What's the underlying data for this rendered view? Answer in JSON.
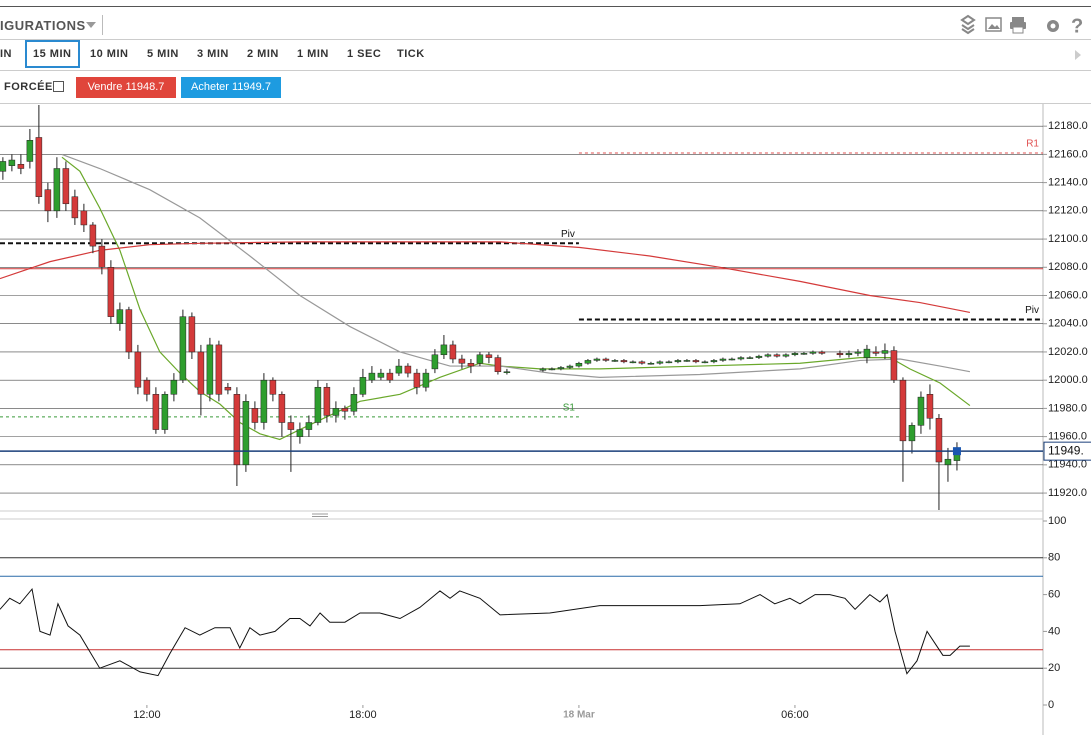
{
  "toolbar": {
    "title": "IGURATIONS"
  },
  "timeframes": [
    "IN",
    "15 MIN",
    "10 MIN",
    "5 MIN",
    "3 MIN",
    "2 MIN",
    "1 MIN",
    "1 SEC",
    "TICK"
  ],
  "order_bar": {
    "label": "FORCÉE",
    "sell": "Vendre 11948.7",
    "buy": "Acheter 11949.7"
  },
  "chart_data": [
    {
      "type": "candlestick",
      "xlim": [
        7.92,
        36.89
      ],
      "ylim": [
        11908,
        12195
      ],
      "grid": true,
      "yticks": [
        {
          "value": 12180,
          "label": "12180.0"
        },
        {
          "value": 12160,
          "label": "12160.0"
        },
        {
          "value": 12140,
          "label": "12140.0"
        },
        {
          "value": 12120,
          "label": "12120.0"
        },
        {
          "value": 12100,
          "label": "12100.0"
        },
        {
          "value": 12080,
          "label": "12080.0"
        },
        {
          "value": 12060,
          "label": "12060.0"
        },
        {
          "value": 12040,
          "label": "12040.0"
        },
        {
          "value": 12020,
          "label": "12020.0"
        },
        {
          "value": 12000,
          "label": "12000.0"
        },
        {
          "value": 11980,
          "label": "11980.0"
        },
        {
          "value": 11960,
          "label": "11960.0"
        },
        {
          "value": 11940,
          "label": "11940.0"
        },
        {
          "value": 11920,
          "label": "11920.0"
        }
      ],
      "up_color": "#2e9e2e",
      "down_color": "#d43a3a",
      "x": [
        8,
        8.25,
        8.5,
        8.75,
        9,
        9.25,
        9.5,
        9.75,
        10,
        10.25,
        10.5,
        10.75,
        11,
        11.25,
        11.5,
        11.75,
        12,
        12.25,
        12.5,
        12.75,
        13,
        13.25,
        13.5,
        13.75,
        14,
        14.25,
        14.5,
        14.75,
        15,
        15.25,
        15.5,
        15.75,
        16,
        16.25,
        16.5,
        16.75,
        17,
        17.25,
        17.5,
        17.75,
        18,
        18.25,
        18.5,
        18.75,
        19,
        19.25,
        19.5,
        19.75,
        20,
        20.25,
        20.5,
        20.75,
        21,
        21.25,
        21.5,
        21.75,
        22,
        23,
        23.25,
        23.5,
        23.75,
        24,
        24.25,
        24.5,
        24.75,
        25,
        25.25,
        25.5,
        25.75,
        26,
        26.25,
        26.5,
        26.75,
        27,
        27.25,
        27.5,
        27.75,
        28,
        28.25,
        28.5,
        28.75,
        29,
        29.25,
        29.5,
        29.75,
        30,
        30.25,
        30.5,
        30.75,
        31.25,
        31.5,
        31.75,
        32,
        32.25,
        32.5,
        32.75,
        33,
        33.25,
        33.5,
        33.75,
        34,
        34.25,
        34.5
      ],
      "open": [
        12148,
        12152,
        12153,
        12155,
        12172,
        12135,
        12120,
        12150,
        12130,
        12120,
        12110,
        12095,
        12080,
        12040,
        12050,
        12020,
        12000,
        11990,
        11965,
        11990,
        12000,
        12045,
        12020,
        11990,
        12025,
        11995,
        11990,
        11940,
        11980,
        11970,
        12000,
        11990,
        11970,
        11960,
        11965,
        11970,
        11995,
        11975,
        11980,
        11978,
        11990,
        12000,
        12002,
        12005,
        12005,
        12010,
        12005,
        11995,
        12008,
        12018,
        12025,
        12015,
        12012,
        12012,
        12018,
        12016,
        12006,
        12007,
        12008,
        12008,
        12009,
        12010,
        12012,
        12014,
        12015,
        12014,
        12014,
        12013,
        12013,
        12012,
        12012,
        12013,
        12013,
        12014,
        12014,
        12013,
        12013,
        12014,
        12015,
        12015,
        12016,
        12016,
        12017,
        12018,
        12017,
        12018,
        12019,
        12019,
        12020,
        12019,
        12018,
        12019,
        12016,
        12020,
        12019,
        12021,
        12000,
        11957,
        11968,
        11990,
        11973,
        11940,
        11943
      ],
      "high": [
        12158,
        12160,
        12160,
        12178,
        12195,
        12140,
        12158,
        12155,
        12135,
        12125,
        12112,
        12100,
        12085,
        12055,
        12052,
        12025,
        12002,
        11995,
        11992,
        12005,
        12050,
        12048,
        12025,
        12030,
        12028,
        11998,
        11995,
        11990,
        11985,
        12005,
        12002,
        11992,
        11975,
        11970,
        11975,
        12000,
        11998,
        11985,
        11982,
        11995,
        12008,
        12010,
        12008,
        12008,
        12015,
        12012,
        12008,
        12008,
        12022,
        12032,
        12028,
        12018,
        12015,
        12020,
        12020,
        12018,
        12008,
        12009,
        12009,
        12010,
        12011,
        12013,
        12015,
        12016,
        12016,
        12015,
        12015,
        12014,
        12014,
        12013,
        12014,
        12014,
        12015,
        12015,
        12015,
        12014,
        12015,
        12016,
        12016,
        12017,
        12017,
        12018,
        12019,
        12019,
        12019,
        12020,
        12020,
        12021,
        12021,
        12021,
        12021,
        12022,
        12025,
        12024,
        12026,
        12024,
        12002,
        11970,
        11992,
        11997,
        11976,
        11952,
        11956
      ],
      "low": [
        12142,
        12148,
        12146,
        12150,
        12125,
        12112,
        12115,
        12120,
        12110,
        12105,
        12090,
        12075,
        12040,
        12035,
        12015,
        11990,
        11985,
        11962,
        11962,
        11985,
        11998,
        12015,
        11975,
        11985,
        11985,
        11990,
        11925,
        11935,
        11965,
        11965,
        11985,
        11960,
        11935,
        11955,
        11960,
        11968,
        11970,
        11970,
        11972,
        11975,
        11988,
        11998,
        12000,
        11998,
        12003,
        12002,
        11990,
        11992,
        12005,
        12015,
        12012,
        12008,
        12005,
        12010,
        12012,
        12004,
        12004,
        12006,
        12007,
        12007,
        12008,
        12009,
        12011,
        12013,
        12013,
        12013,
        12012,
        12012,
        12011,
        12011,
        12011,
        12012,
        12012,
        12013,
        12012,
        12012,
        12012,
        12013,
        12014,
        12014,
        12015,
        12015,
        12016,
        12016,
        12016,
        12017,
        12018,
        12018,
        12018,
        12016,
        12016,
        12017,
        12012,
        12017,
        12015,
        11998,
        11928,
        11948,
        11962,
        11965,
        11908,
        11928,
        11936
      ],
      "close": [
        12155,
        12156,
        12150,
        12170,
        12130,
        12120,
        12150,
        12125,
        12115,
        12110,
        12095,
        12080,
        12045,
        12050,
        12020,
        11995,
        11990,
        11965,
        11990,
        12000,
        12045,
        12020,
        11990,
        12025,
        11990,
        11993,
        11940,
        11985,
        11970,
        12000,
        11990,
        11970,
        11965,
        11965,
        11970,
        11995,
        11975,
        11980,
        11978,
        11990,
        12002,
        12005,
        12005,
        12000,
        12010,
        12005,
        11995,
        12005,
        12018,
        12025,
        12015,
        12012,
        12010,
        12018,
        12016,
        12006,
        12006,
        12008,
        12008,
        12009,
        12010,
        12012,
        12014,
        12015,
        12014,
        12014,
        12013,
        12013,
        12012,
        12012,
        12013,
        12013,
        12014,
        12014,
        12013,
        12013,
        12014,
        12015,
        12015,
        12016,
        12016,
        12017,
        12018,
        12017,
        12018,
        12019,
        12019,
        12020,
        12019,
        12018,
        12019,
        12020,
        12022,
        12019,
        12021,
        12000,
        11957,
        11968,
        11988,
        11973,
        11942,
        11944,
        11950
      ],
      "series": [
        {
          "color": "#6aa82a",
          "x": [
            9.64,
            10.14,
            10.69,
            11.25,
            11.81,
            12.36,
            12.92,
            13.47,
            14.03,
            14.58,
            15.14,
            15.69,
            16.25,
            17.08,
            17.92,
            19.03,
            20.14,
            21.25,
            21.81,
            22.92,
            24.58,
            27.36,
            30.14,
            31.81,
            32.64,
            33.19,
            34.03,
            34.86
          ],
          "values": [
            12158,
            12148,
            12122,
            12092,
            12050,
            12020,
            12005,
            11992,
            11983,
            11970,
            11962,
            11958,
            11965,
            11975,
            11985,
            11990,
            12002,
            12012,
            12010,
            12008,
            12008,
            12010,
            12012,
            12016,
            12016,
            12008,
            11998,
            11982
          ]
        },
        {
          "color": "#999999",
          "x": [
            9.64,
            10.69,
            12.08,
            13.47,
            14.86,
            16.25,
            17.64,
            19.03,
            20.42,
            21.81,
            23.19,
            24.58,
            27.36,
            30.14,
            31.81,
            32.92,
            34.03,
            34.86
          ],
          "values": [
            12160,
            12150,
            12135,
            12115,
            12088,
            12060,
            12038,
            12020,
            12010,
            12010,
            12005,
            12002,
            12004,
            12008,
            12014,
            12015,
            12010,
            12006
          ]
        },
        {
          "color": "#d43a3a",
          "x": [
            7.92,
            9.31,
            10.69,
            12.08,
            13.47,
            16.25,
            19.03,
            21.81,
            24.03,
            25.97,
            27.92,
            30.14,
            32.08,
            33.47,
            34.86
          ],
          "values": [
            12072,
            12084,
            12092,
            12096,
            12097,
            12098,
            12098,
            12098,
            12094,
            12088,
            12080,
            12070,
            12060,
            12055,
            12048
          ]
        }
      ],
      "levels": [
        {
          "value": 12097,
          "label": "Piv",
          "color": "#111111",
          "dashed": true,
          "x": [
            7.92,
            24
          ]
        },
        {
          "value": 11974,
          "label": "S1",
          "color": "#3a9a3a",
          "dashed": true,
          "x": [
            7.92,
            24
          ]
        },
        {
          "value": 12161,
          "label": "R1",
          "color": "#e05050",
          "dashed": true,
          "x": [
            24,
            36.89
          ]
        },
        {
          "value": 12043,
          "label": "Piv",
          "color": "#111111",
          "dashed": true,
          "x": [
            24,
            36.89
          ]
        },
        {
          "value": 12079,
          "color": "#d43a3a",
          "dashed": false,
          "x": [
            7.92,
            36.89
          ]
        }
      ],
      "last": {
        "value": 11949.7,
        "label": "11949.",
        "color": "#1a3f7a"
      }
    },
    {
      "type": "line",
      "xlim": [
        7.92,
        36.89
      ],
      "ylim": [
        0,
        100
      ],
      "yticks": [
        0,
        20,
        40,
        60,
        80,
        100
      ],
      "color": "#111111",
      "xticks": [
        {
          "value": 12,
          "label": "12:00"
        },
        {
          "value": 18,
          "label": "18:00"
        },
        {
          "value": 24,
          "label": "18 Mar"
        },
        {
          "value": 30,
          "label": "06:00"
        }
      ],
      "levels": [
        {
          "value": 80,
          "color": "#333333"
        },
        {
          "value": 70,
          "color": "#2a6aa8"
        },
        {
          "value": 30,
          "color": "#c83030"
        },
        {
          "value": 20,
          "color": "#333333"
        }
      ],
      "x": [
        7.92,
        8.19,
        8.47,
        8.81,
        9.03,
        9.31,
        9.53,
        9.81,
        10.14,
        10.69,
        11.25,
        11.81,
        12.31,
        12.64,
        13.06,
        13.47,
        13.89,
        14.31,
        14.58,
        14.86,
        15.14,
        15.56,
        15.97,
        16.25,
        16.53,
        16.81,
        17.08,
        17.5,
        17.92,
        18.47,
        19.03,
        19.58,
        20.14,
        20.42,
        20.69,
        21.25,
        21.81,
        23.19,
        24.58,
        25.97,
        27.36,
        28.47,
        29.03,
        29.44,
        29.86,
        30.14,
        30.56,
        30.97,
        31.39,
        31.67,
        32.08,
        32.36,
        32.56,
        32.78,
        33.11,
        33.39,
        33.67,
        34.11,
        34.31,
        34.58,
        34.86
      ],
      "values": [
        52,
        58,
        55,
        63,
        40,
        38,
        55,
        43,
        38,
        20,
        24,
        18,
        16,
        28,
        42,
        38,
        42,
        42,
        31,
        42,
        38,
        40,
        47,
        47,
        43,
        50,
        45,
        45,
        50,
        50,
        47,
        53,
        62,
        58,
        62,
        58,
        49,
        50,
        54,
        54,
        54,
        55,
        60,
        55,
        58,
        55,
        60,
        60,
        58,
        52,
        60,
        56,
        60,
        40,
        17,
        24,
        40,
        27,
        27,
        32,
        32
      ]
    }
  ]
}
